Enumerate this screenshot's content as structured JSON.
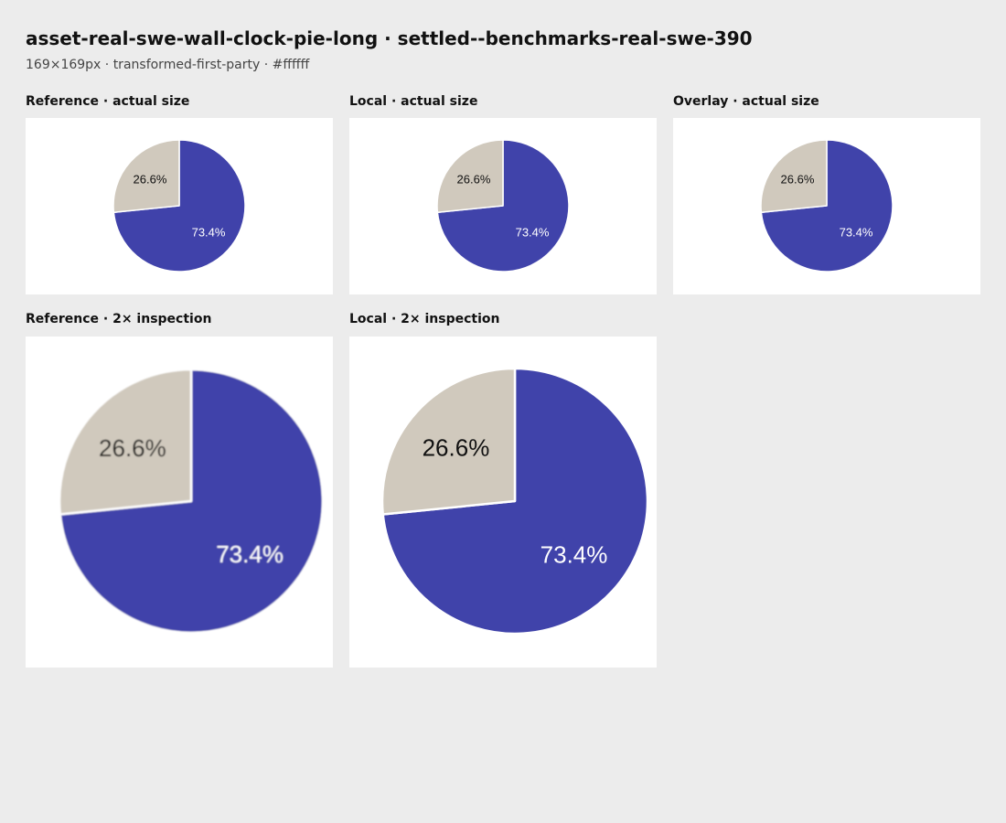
{
  "header": {
    "title": "asset-real-swe-wall-clock-pie-long · settled--benchmarks-real-swe-390",
    "subtitle": "169×169px · transformed-first-party · #ffffff"
  },
  "panels": {
    "reference_actual": {
      "label": "Reference · actual size"
    },
    "local_actual": {
      "label": "Local · actual size"
    },
    "overlay_actual": {
      "label": "Overlay · actual size"
    },
    "reference_2x": {
      "label": "Reference · 2× inspection"
    },
    "local_2x": {
      "label": "Local · 2× inspection"
    }
  },
  "chart_data": {
    "type": "pie",
    "slices": [
      {
        "value": 73.4,
        "label": "73.4%",
        "color": "#4043aa",
        "label_color": "#ffffff"
      },
      {
        "value": 26.6,
        "label": "26.6%",
        "color": "#d0c9bd",
        "label_color": "#111111"
      }
    ],
    "start_angle_deg": 0,
    "direction": "clockwise",
    "edge_color": "#ffffff"
  }
}
